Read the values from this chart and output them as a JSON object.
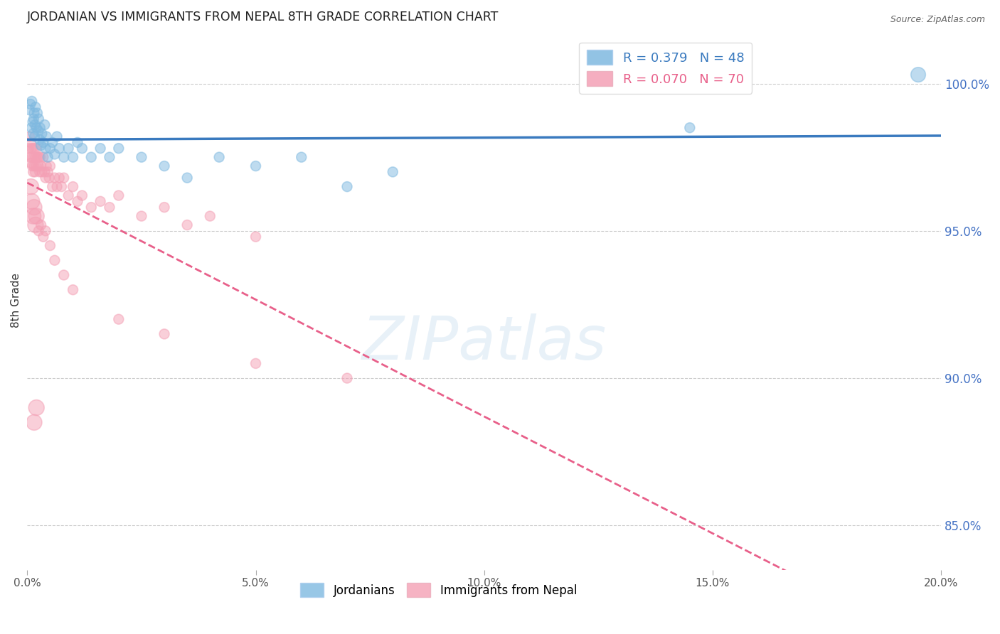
{
  "title": "JORDANIAN VS IMMIGRANTS FROM NEPAL 8TH GRADE CORRELATION CHART",
  "source": "Source: ZipAtlas.com",
  "watermark": "ZIPatlas",
  "ylabel": "8th Grade",
  "right_yticks": [
    100.0,
    95.0,
    90.0,
    85.0
  ],
  "right_ytick_labels": [
    "100.0%",
    "95.0%",
    "90.0%",
    "85.0%"
  ],
  "xmin": 0.0,
  "xmax": 20.0,
  "ymin": 83.5,
  "ymax": 101.8,
  "blue_color": "#7fb9e0",
  "pink_color": "#f4a0b5",
  "blue_line_color": "#3a7abf",
  "pink_line_color": "#e8608a",
  "legend_blue_label": "R = 0.379   N = 48",
  "legend_pink_label": "R = 0.070   N = 70",
  "legend_jordanians": "Jordanians",
  "legend_nepal": "Immigrants from Nepal",
  "blue_points_x": [
    0.05,
    0.07,
    0.09,
    0.1,
    0.12,
    0.13,
    0.14,
    0.15,
    0.16,
    0.17,
    0.18,
    0.2,
    0.22,
    0.24,
    0.25,
    0.27,
    0.28,
    0.3,
    0.32,
    0.35,
    0.38,
    0.4,
    0.42,
    0.45,
    0.5,
    0.55,
    0.6,
    0.65,
    0.7,
    0.8,
    0.9,
    1.0,
    1.1,
    1.2,
    1.4,
    1.6,
    1.8,
    2.0,
    2.5,
    3.0,
    3.5,
    4.2,
    5.0,
    6.0,
    7.0,
    8.0,
    14.5,
    19.5
  ],
  "blue_points_y": [
    99.1,
    99.3,
    98.5,
    99.4,
    98.7,
    98.3,
    98.8,
    99.0,
    98.2,
    98.6,
    99.2,
    98.5,
    99.0,
    98.4,
    98.8,
    98.1,
    98.5,
    97.9,
    98.3,
    98.0,
    98.6,
    97.8,
    98.2,
    97.5,
    97.8,
    98.0,
    97.6,
    98.2,
    97.8,
    97.5,
    97.8,
    97.5,
    98.0,
    97.8,
    97.5,
    97.8,
    97.5,
    97.8,
    97.5,
    97.2,
    96.8,
    97.5,
    97.2,
    97.5,
    96.5,
    97.0,
    98.5,
    100.3
  ],
  "blue_sizes": [
    100,
    100,
    100,
    100,
    100,
    100,
    100,
    100,
    100,
    100,
    100,
    100,
    100,
    100,
    100,
    100,
    100,
    100,
    100,
    100,
    100,
    100,
    100,
    100,
    100,
    100,
    100,
    100,
    100,
    100,
    100,
    100,
    100,
    100,
    100,
    100,
    100,
    100,
    100,
    100,
    100,
    100,
    100,
    100,
    100,
    100,
    100,
    220
  ],
  "pink_points_x": [
    0.03,
    0.05,
    0.06,
    0.07,
    0.08,
    0.09,
    0.1,
    0.11,
    0.12,
    0.13,
    0.14,
    0.15,
    0.16,
    0.17,
    0.18,
    0.19,
    0.2,
    0.22,
    0.24,
    0.25,
    0.27,
    0.28,
    0.3,
    0.32,
    0.35,
    0.38,
    0.4,
    0.42,
    0.45,
    0.48,
    0.5,
    0.55,
    0.6,
    0.65,
    0.7,
    0.75,
    0.8,
    0.9,
    1.0,
    1.1,
    1.2,
    1.4,
    1.6,
    1.8,
    2.0,
    2.5,
    3.0,
    3.5,
    4.0,
    5.0,
    0.08,
    0.1,
    0.13,
    0.15,
    0.18,
    0.2,
    0.25,
    0.3,
    0.35,
    0.4,
    0.5,
    0.6,
    0.8,
    1.0,
    2.0,
    3.0,
    5.0,
    7.0,
    0.15,
    0.2
  ],
  "pink_points_y": [
    97.8,
    98.2,
    97.5,
    98.0,
    97.3,
    97.8,
    97.5,
    97.2,
    97.8,
    97.0,
    97.5,
    97.2,
    97.8,
    97.0,
    97.5,
    97.2,
    97.8,
    97.5,
    97.2,
    97.5,
    97.0,
    97.5,
    97.2,
    97.0,
    97.5,
    97.0,
    96.8,
    97.2,
    97.0,
    96.8,
    97.2,
    96.5,
    96.8,
    96.5,
    96.8,
    96.5,
    96.8,
    96.2,
    96.5,
    96.0,
    96.2,
    95.8,
    96.0,
    95.8,
    96.2,
    95.5,
    95.8,
    95.2,
    95.5,
    94.8,
    96.5,
    96.0,
    95.5,
    95.8,
    95.2,
    95.5,
    95.0,
    95.2,
    94.8,
    95.0,
    94.5,
    94.0,
    93.5,
    93.0,
    92.0,
    91.5,
    90.5,
    90.0,
    88.5,
    89.0
  ],
  "pink_sizes": [
    100,
    100,
    100,
    100,
    100,
    100,
    100,
    100,
    100,
    100,
    100,
    100,
    100,
    100,
    100,
    100,
    100,
    100,
    100,
    100,
    100,
    100,
    100,
    100,
    100,
    100,
    100,
    100,
    100,
    100,
    100,
    100,
    100,
    100,
    100,
    100,
    100,
    100,
    100,
    100,
    100,
    100,
    100,
    100,
    100,
    100,
    100,
    100,
    100,
    100,
    250,
    250,
    250,
    250,
    250,
    250,
    100,
    100,
    100,
    100,
    100,
    100,
    100,
    100,
    100,
    100,
    100,
    100,
    250,
    250
  ]
}
